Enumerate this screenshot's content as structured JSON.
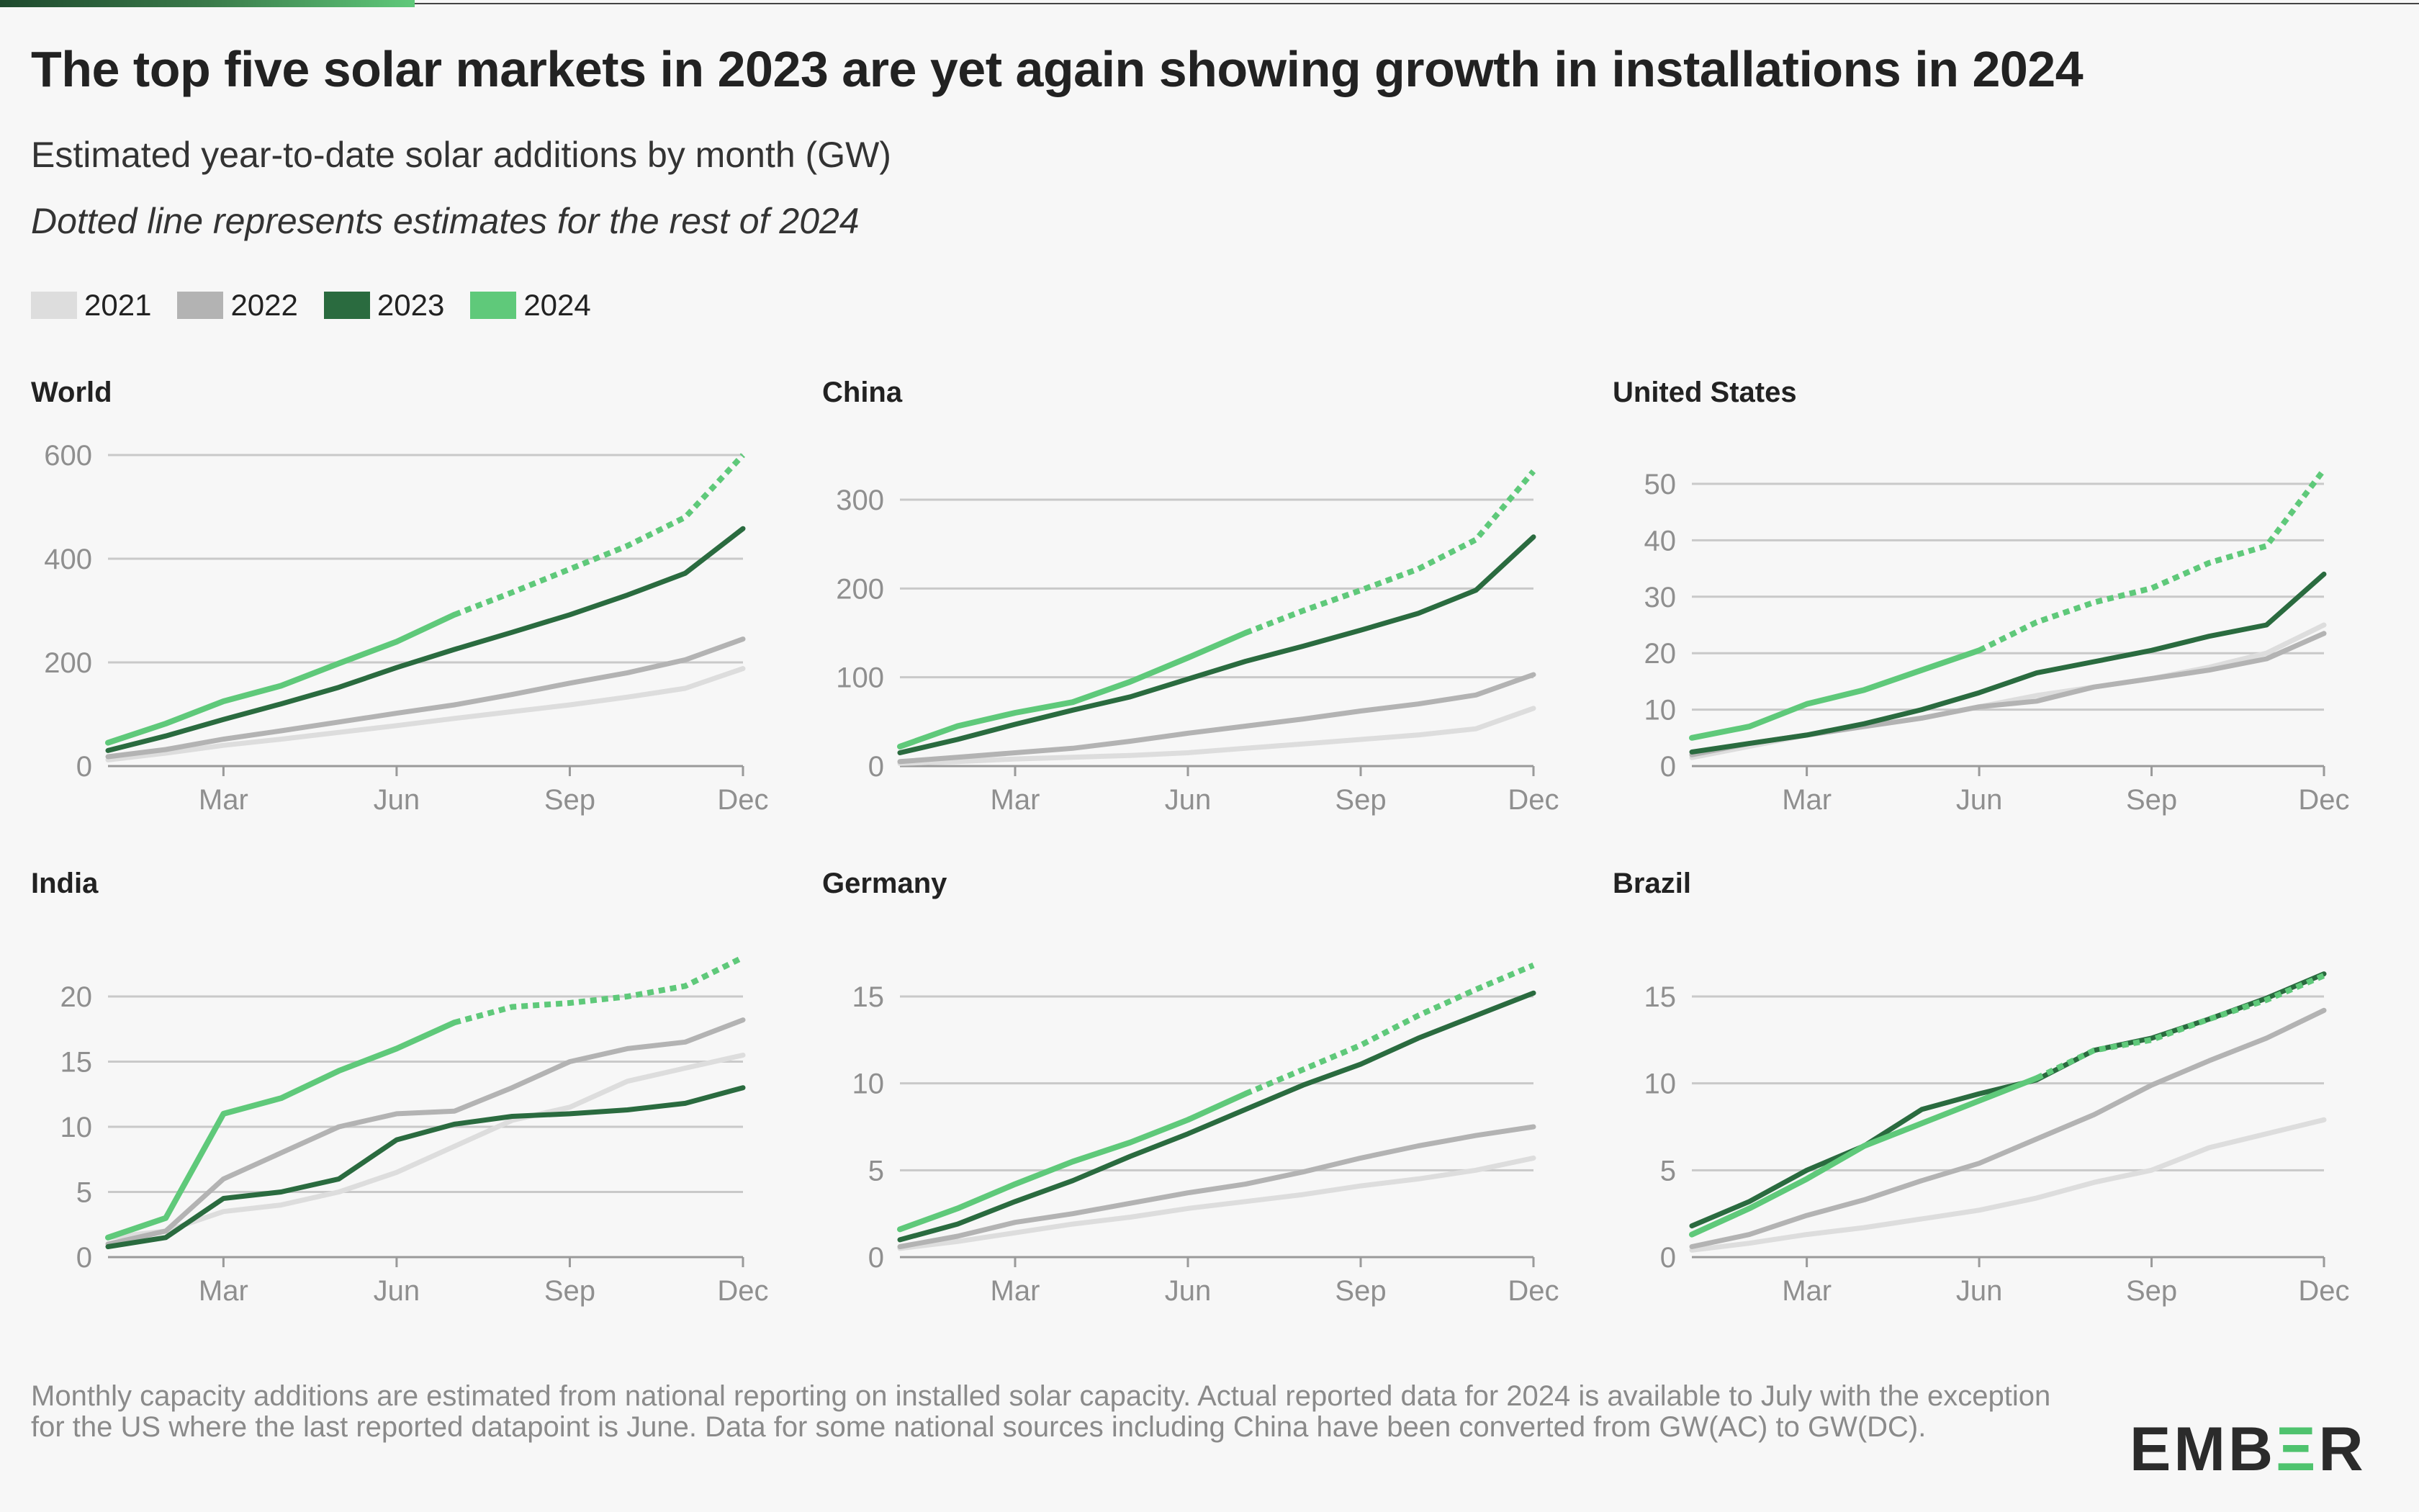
{
  "header": {
    "title": "The top five solar markets in 2023 are yet again showing growth in installations in 2024",
    "subtitle": "Estimated year-to-date solar additions by month (GW)",
    "note": "Dotted line represents estimates for the rest of 2024"
  },
  "colors": {
    "2021": "#dddddd",
    "2022": "#b3b3b3",
    "2023": "#2a6b3f",
    "2024": "#5fc97a",
    "grid": "#c9c9c9",
    "axis_text": "#8f8f8f",
    "panel_title": "#222222"
  },
  "legend": [
    {
      "label": "2021",
      "color": "#dddddd"
    },
    {
      "label": "2022",
      "color": "#b3b3b3"
    },
    {
      "label": "2023",
      "color": "#2a6b3f"
    },
    {
      "label": "2024",
      "color": "#5fc97a"
    }
  ],
  "footnote": "Monthly capacity additions are estimated from national reporting on installed solar capacity. Actual reported data for 2024 is available to July with the exception for the US where the last reported datapoint is June. Data for some national sources including China have been converted from GW(AC) to GW(DC).",
  "logo": {
    "pre": "EMB",
    "mark": "Ξ",
    "post": "R"
  },
  "chart_data": [
    {
      "type": "line",
      "title": "World",
      "x": [
        "Jan",
        "Feb",
        "Mar",
        "Apr",
        "May",
        "Jun",
        "Jul",
        "Aug",
        "Sep",
        "Oct",
        "Nov",
        "Dec"
      ],
      "xticks": [
        "Mar",
        "Jun",
        "Sep",
        "Dec"
      ],
      "yticks": [
        0,
        200,
        400,
        600
      ],
      "ylim": [
        0,
        600
      ],
      "grid": true,
      "series": [
        {
          "name": "2021",
          "values": [
            12,
            25,
            40,
            52,
            65,
            78,
            92,
            105,
            118,
            133,
            150,
            188
          ]
        },
        {
          "name": "2022",
          "values": [
            18,
            32,
            52,
            68,
            85,
            102,
            118,
            138,
            160,
            180,
            205,
            245
          ]
        },
        {
          "name": "2023",
          "values": [
            30,
            58,
            90,
            120,
            152,
            190,
            225,
            258,
            292,
            330,
            372,
            458
          ]
        },
        {
          "name": "2024",
          "values": [
            45,
            82,
            125,
            155,
            198,
            240,
            292,
            335,
            380,
            425,
            480,
            600
          ],
          "actual_through": "Jul"
        }
      ]
    },
    {
      "type": "line",
      "title": "China",
      "x": [
        "Jan",
        "Feb",
        "Mar",
        "Apr",
        "May",
        "Jun",
        "Jul",
        "Aug",
        "Sep",
        "Oct",
        "Nov",
        "Dec"
      ],
      "xticks": [
        "Mar",
        "Jun",
        "Sep",
        "Dec"
      ],
      "yticks": [
        0,
        100,
        200,
        300
      ],
      "ylim": [
        0,
        300
      ],
      "grid": true,
      "series": [
        {
          "name": "2021",
          "values": [
            3,
            5,
            8,
            10,
            12,
            15,
            20,
            25,
            30,
            35,
            42,
            65
          ]
        },
        {
          "name": "2022",
          "values": [
            5,
            10,
            15,
            20,
            28,
            37,
            45,
            53,
            62,
            70,
            80,
            103
          ]
        },
        {
          "name": "2023",
          "values": [
            15,
            30,
            47,
            63,
            78,
            98,
            118,
            135,
            153,
            172,
            198,
            258
          ]
        },
        {
          "name": "2024",
          "values": [
            22,
            45,
            60,
            72,
            95,
            122,
            150,
            175,
            198,
            222,
            255,
            332
          ],
          "actual_through": "Jul"
        }
      ]
    },
    {
      "type": "line",
      "title": "United States",
      "x": [
        "Jan",
        "Feb",
        "Mar",
        "Apr",
        "May",
        "Jun",
        "Jul",
        "Aug",
        "Sep",
        "Oct",
        "Nov",
        "Dec"
      ],
      "xticks": [
        "Mar",
        "Jun",
        "Sep",
        "Dec"
      ],
      "yticks": [
        0,
        10,
        20,
        30,
        40,
        50
      ],
      "ylim": [
        0,
        50
      ],
      "grid": true,
      "series": [
        {
          "name": "2021",
          "values": [
            1.5,
            3.5,
            5.5,
            7,
            8.5,
            10.5,
            12.5,
            14,
            15.5,
            17.5,
            20,
            25
          ]
        },
        {
          "name": "2022",
          "values": [
            2,
            4,
            5.5,
            7,
            8.5,
            10.5,
            11.5,
            14,
            15.5,
            17,
            19,
            23.5
          ]
        },
        {
          "name": "2023",
          "values": [
            2.5,
            4,
            5.5,
            7.5,
            10,
            13,
            16.5,
            18.5,
            20.5,
            23,
            25,
            34
          ]
        },
        {
          "name": "2024",
          "values": [
            5,
            7,
            11,
            13.5,
            17,
            20.5,
            25.5,
            29,
            31.5,
            36,
            39,
            52.5
          ],
          "actual_through": "Jun"
        }
      ]
    },
    {
      "type": "line",
      "title": "India",
      "x": [
        "Jan",
        "Feb",
        "Mar",
        "Apr",
        "May",
        "Jun",
        "Jul",
        "Aug",
        "Sep",
        "Oct",
        "Nov",
        "Dec"
      ],
      "xticks": [
        "Mar",
        "Jun",
        "Sep",
        "Dec"
      ],
      "yticks": [
        0,
        5,
        10,
        15,
        20
      ],
      "ylim": [
        0,
        23
      ],
      "grid": true,
      "series": [
        {
          "name": "2021",
          "values": [
            1.5,
            2,
            3.5,
            4,
            5,
            6.5,
            8.5,
            10.5,
            11.5,
            13.5,
            14.5,
            15.5
          ]
        },
        {
          "name": "2022",
          "values": [
            1,
            2,
            6,
            8,
            10,
            11,
            11.2,
            13,
            15,
            16,
            16.5,
            18.2
          ]
        },
        {
          "name": "2023",
          "values": [
            0.8,
            1.5,
            4.5,
            5,
            6,
            9,
            10.2,
            10.8,
            11,
            11.3,
            11.8,
            13
          ]
        },
        {
          "name": "2024",
          "values": [
            1.5,
            3,
            11,
            12.2,
            14.3,
            16,
            18,
            19.2,
            19.5,
            20,
            20.8,
            23
          ],
          "actual_through": "Jul"
        }
      ]
    },
    {
      "type": "line",
      "title": "Germany",
      "x": [
        "Jan",
        "Feb",
        "Mar",
        "Apr",
        "May",
        "Jun",
        "Jul",
        "Aug",
        "Sep",
        "Oct",
        "Nov",
        "Dec"
      ],
      "xticks": [
        "Mar",
        "Jun",
        "Sep",
        "Dec"
      ],
      "yticks": [
        0,
        5,
        10,
        15
      ],
      "ylim": [
        0,
        17
      ],
      "grid": true,
      "series": [
        {
          "name": "2021",
          "values": [
            0.5,
            0.9,
            1.4,
            1.9,
            2.3,
            2.8,
            3.2,
            3.6,
            4.1,
            4.5,
            5,
            5.7
          ]
        },
        {
          "name": "2022",
          "values": [
            0.6,
            1.2,
            2,
            2.5,
            3.1,
            3.7,
            4.2,
            4.9,
            5.7,
            6.4,
            7,
            7.5
          ]
        },
        {
          "name": "2023",
          "values": [
            1,
            1.9,
            3.2,
            4.4,
            5.8,
            7.1,
            8.5,
            9.9,
            11.1,
            12.6,
            13.9,
            15.2
          ]
        },
        {
          "name": "2024",
          "values": [
            1.6,
            2.8,
            4.2,
            5.5,
            6.6,
            7.9,
            9.4,
            10.8,
            12.2,
            13.9,
            15.4,
            16.8
          ],
          "actual_through": "Jul"
        }
      ]
    },
    {
      "type": "line",
      "title": "Brazil",
      "x": [
        "Jan",
        "Feb",
        "Mar",
        "Apr",
        "May",
        "Jun",
        "Jul",
        "Aug",
        "Sep",
        "Oct",
        "Nov",
        "Dec"
      ],
      "xticks": [
        "Mar",
        "Jun",
        "Sep",
        "Dec"
      ],
      "yticks": [
        0,
        5,
        10,
        15
      ],
      "ylim": [
        0,
        17
      ],
      "grid": true,
      "series": [
        {
          "name": "2021",
          "values": [
            0.4,
            0.8,
            1.3,
            1.7,
            2.2,
            2.7,
            3.4,
            4.3,
            5,
            6.3,
            7.1,
            7.9
          ]
        },
        {
          "name": "2022",
          "values": [
            0.6,
            1.3,
            2.4,
            3.3,
            4.4,
            5.4,
            6.8,
            8.2,
            9.9,
            11.3,
            12.6,
            14.2
          ]
        },
        {
          "name": "2023",
          "values": [
            1.8,
            3.2,
            5,
            6.4,
            8.5,
            9.4,
            10.2,
            11.9,
            12.6,
            13.7,
            14.9,
            16.3
          ]
        },
        {
          "name": "2024",
          "values": [
            1.3,
            2.8,
            4.5,
            6.4,
            7.7,
            9,
            10.3,
            11.9,
            12.5,
            13.7,
            14.8,
            16.2
          ],
          "actual_through": "Jul"
        }
      ]
    }
  ]
}
